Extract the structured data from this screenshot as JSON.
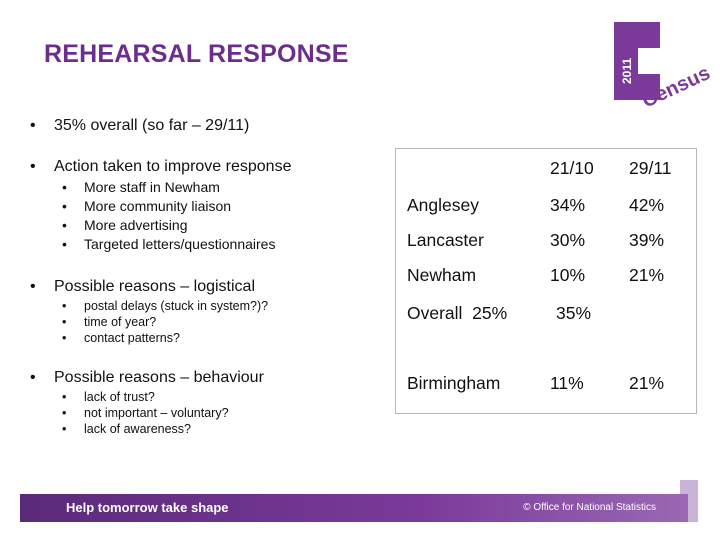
{
  "slide": {
    "title": "REHEARSAL RESPONSE"
  },
  "logo": {
    "year": "2011",
    "word": "Census",
    "color": "#7b3a9a"
  },
  "bullets": {
    "overall": "35% overall (so far – 29/11)",
    "action": {
      "label": "Action taken to improve response",
      "items": [
        "More staff in Newham",
        "More community liaison",
        "More advertising",
        "Targeted letters/questionnaires"
      ]
    },
    "logistical": {
      "label": "Possible reasons – logistical",
      "items": [
        "postal delays (stuck in system?)?",
        "time of year?",
        "contact patterns?"
      ]
    },
    "behaviour": {
      "label": "Possible reasons – behaviour",
      "items": [
        "lack of trust?",
        "not important – voluntary?",
        "lack of awareness?"
      ]
    }
  },
  "table": {
    "columns": [
      "21/10",
      "29/11"
    ],
    "rows": [
      {
        "area": "Anglesey",
        "c1": "34%",
        "c2": "42%"
      },
      {
        "area": "Lancaster",
        "c1": "30%",
        "c2": "39%"
      },
      {
        "area": "Newham",
        "c1": "10%",
        "c2": "21%"
      },
      {
        "area": "Overall  25%",
        "c1": "35%",
        "c2": ""
      },
      {
        "area": "Birmingham",
        "c1": "11%",
        "c2": "21%"
      }
    ]
  },
  "footer": {
    "tagline": "Help tomorrow take shape",
    "credit": "© Office for National Statistics"
  }
}
